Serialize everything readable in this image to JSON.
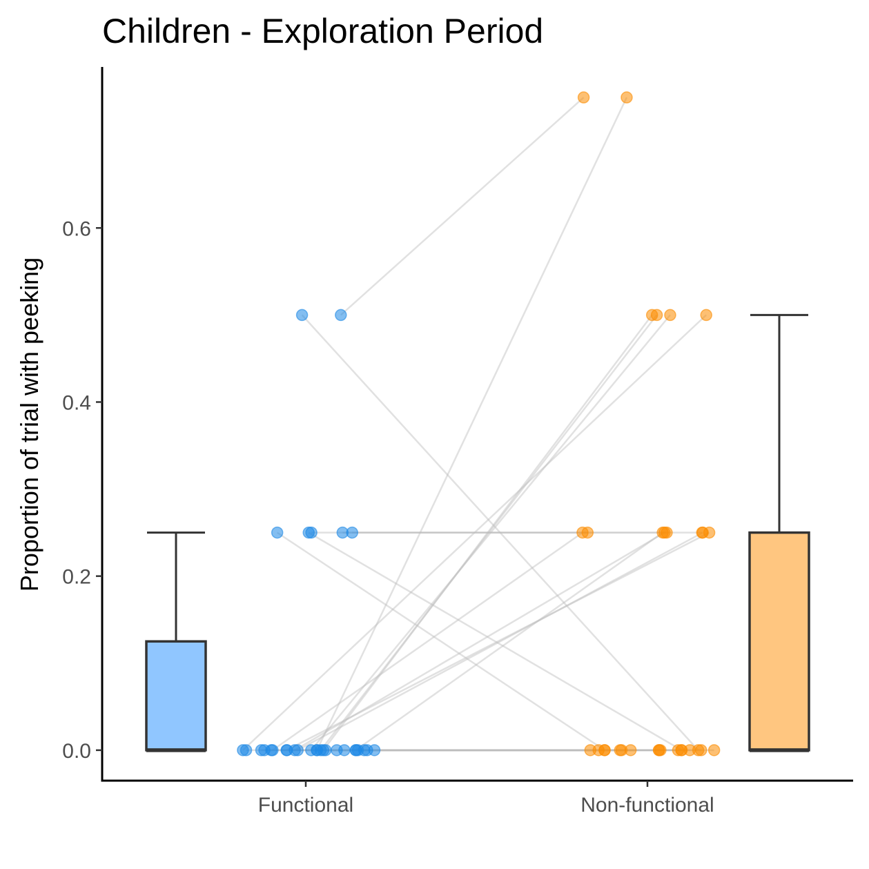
{
  "chart_data": {
    "type": "scatter",
    "title": "Children - Exploration Period",
    "xlabel": "",
    "ylabel": "Proportion of trial with peeking",
    "categories": [
      "Functional",
      "Non-functional"
    ],
    "yticks": [
      0.0,
      0.2,
      0.4,
      0.6
    ],
    "ytick_labels": [
      "0.0",
      "0.2",
      "0.4",
      "0.6"
    ],
    "ylim": [
      -0.035,
      0.785
    ],
    "colors": {
      "functional_point": "#1e88e5",
      "nonfunctional_point": "#fb8c00",
      "functional_box": "#90c6ff",
      "nonfunctional_box": "#ffc680",
      "pair_line": "#bdbdbd"
    },
    "boxplots": [
      {
        "group": "Functional",
        "min": 0.0,
        "q1": 0.0,
        "median": 0.0,
        "q3": 0.125,
        "max": 0.25
      },
      {
        "group": "Non-functional",
        "min": 0.0,
        "q1": 0.0,
        "median": 0.0,
        "q3": 0.25,
        "max": 0.5
      }
    ],
    "pairs": [
      {
        "functional": 0.5,
        "nonfunctional": 0.75
      },
      {
        "functional": 0.0,
        "nonfunctional": 0.75
      },
      {
        "functional": 0.5,
        "nonfunctional": 0.0
      },
      {
        "functional": 0.25,
        "nonfunctional": 0.0
      },
      {
        "functional": 0.25,
        "nonfunctional": 0.25
      },
      {
        "functional": 0.25,
        "nonfunctional": 0.25
      },
      {
        "functional": 0.25,
        "nonfunctional": 0.0
      },
      {
        "functional": 0.25,
        "nonfunctional": 0.25
      },
      {
        "functional": 0.0,
        "nonfunctional": 0.5
      },
      {
        "functional": 0.0,
        "nonfunctional": 0.5
      },
      {
        "functional": 0.0,
        "nonfunctional": 0.5
      },
      {
        "functional": 0.0,
        "nonfunctional": 0.5
      },
      {
        "functional": 0.0,
        "nonfunctional": 0.25
      },
      {
        "functional": 0.0,
        "nonfunctional": 0.25
      },
      {
        "functional": 0.0,
        "nonfunctional": 0.25
      },
      {
        "functional": 0.0,
        "nonfunctional": 0.25
      },
      {
        "functional": 0.0,
        "nonfunctional": 0.25
      },
      {
        "functional": 0.0,
        "nonfunctional": 0.0
      },
      {
        "functional": 0.0,
        "nonfunctional": 0.0
      },
      {
        "functional": 0.0,
        "nonfunctional": 0.0
      },
      {
        "functional": 0.0,
        "nonfunctional": 0.0
      },
      {
        "functional": 0.0,
        "nonfunctional": 0.0
      },
      {
        "functional": 0.0,
        "nonfunctional": 0.0
      },
      {
        "functional": 0.0,
        "nonfunctional": 0.0
      },
      {
        "functional": 0.0,
        "nonfunctional": 0.0
      },
      {
        "functional": 0.0,
        "nonfunctional": 0.0
      },
      {
        "functional": 0.0,
        "nonfunctional": 0.0
      },
      {
        "functional": 0.0,
        "nonfunctional": 0.0
      },
      {
        "functional": 0.0,
        "nonfunctional": 0.0
      },
      {
        "functional": 0.0,
        "nonfunctional": 0.0
      },
      {
        "functional": 0.0,
        "nonfunctional": 0.0
      }
    ],
    "grid": false,
    "legend": "none"
  }
}
